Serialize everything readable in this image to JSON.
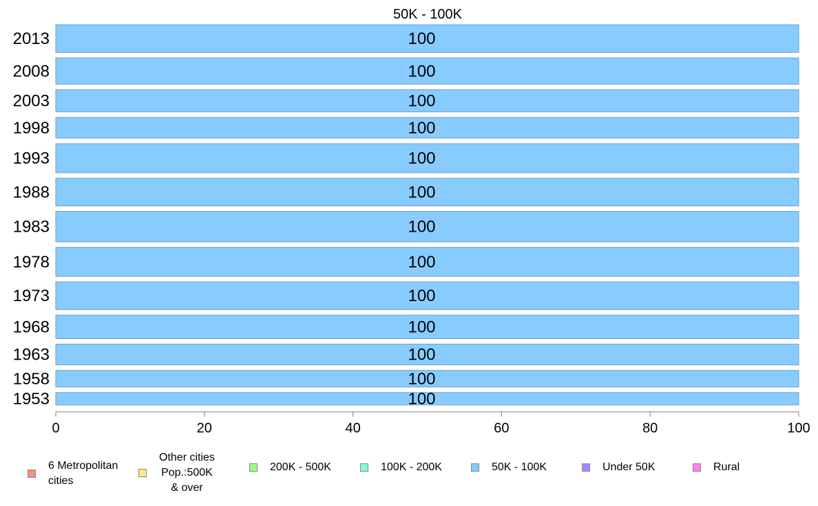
{
  "chart_data": {
    "type": "bar",
    "orientation": "horizontal",
    "title": "50K - 100K",
    "xlabel": "",
    "ylabel": "",
    "categories": [
      "2013",
      "2008",
      "2003",
      "1998",
      "1993",
      "1988",
      "1983",
      "1978",
      "1973",
      "1968",
      "1963",
      "1958",
      "1953"
    ],
    "series": [
      {
        "color": "#88ccff",
        "values": [
          100,
          100,
          100,
          100,
          100,
          100,
          100,
          100,
          100,
          100,
          100,
          100,
          100
        ],
        "labels": [
          "100",
          "100",
          "100",
          "100",
          "100",
          "100",
          "100",
          "100",
          "100",
          "100",
          "100",
          "100",
          "100"
        ]
      }
    ],
    "relative_widths": [
      1.0,
      0.95,
      0.8,
      0.75,
      1.05,
      1.0,
      1.1,
      1.05,
      1.0,
      0.85,
      0.75,
      0.6,
      0.45
    ],
    "xlim": [
      0,
      100
    ],
    "xticks": [
      "0",
      "20",
      "40",
      "60",
      "80",
      "100"
    ],
    "grid": false,
    "legend_position": "bottom"
  },
  "legend": {
    "items": [
      {
        "label": "6 Metropolitan\n cities",
        "color": "#ff8a80"
      },
      {
        "label": "Other cities\nPop.:500K\n& over",
        "color": "#ffe680"
      },
      {
        "label": "200K - 500K",
        "color": "#99ff80"
      },
      {
        "label": "100K - 200K",
        "color": "#80ffcc"
      },
      {
        "label": "50K - 100K",
        "color": "#88ccff"
      },
      {
        "label": "Under 50K",
        "color": "#aa88ff"
      },
      {
        "label": "Rural",
        "color": "#ff80ee"
      }
    ]
  }
}
